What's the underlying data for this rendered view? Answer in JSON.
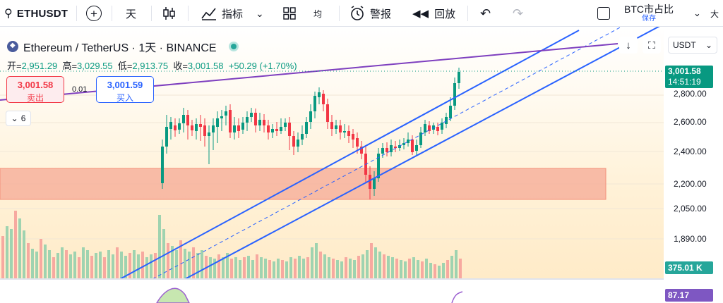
{
  "toolbar": {
    "symbol": "ETHUSDT",
    "interval": "天",
    "indicators": "指标",
    "layout_label": "均",
    "alert": "警报",
    "replay": "回放",
    "compare_title": "BTC市占比",
    "compare_sub": "保存",
    "extra": "大"
  },
  "legend": {
    "title": "Ethereum / TetherUS · 1天 · BINANCE",
    "open_label": "开=",
    "open": "2,951.29",
    "high_label": "高=",
    "high": "3,029.55",
    "low_label": "低=",
    "low": "2,913.75",
    "close_label": "收=",
    "close": "3,001.58",
    "change": "+50.29 (+1.70%)"
  },
  "trade": {
    "sell_price": "3,001.58",
    "sell_label": "卖出",
    "spread": "0.01",
    "buy_price": "3,001.59",
    "buy_label": "买入"
  },
  "collapse_count": "6",
  "currency": "USDT",
  "price_axis": {
    "labels": [
      "2,800.00",
      "2,600.00",
      "2,400.00",
      "2,200.00",
      "2,050.00",
      "1,890.00"
    ],
    "last_price": "3,001.58",
    "countdown": "14:51:19",
    "volume": "375.01 K",
    "indicator": "87.17"
  },
  "colors": {
    "up": "#089981",
    "down": "#f23645",
    "channel": "#2962ff",
    "trendline": "#7e3fbf",
    "zone": "#f6a894"
  },
  "icons": [
    "search-icon",
    "plus-circle-icon",
    "candles-icon",
    "indicators-icon",
    "layout-icon",
    "alert-icon",
    "replay-icon",
    "undo-icon",
    "redo-icon"
  ]
}
